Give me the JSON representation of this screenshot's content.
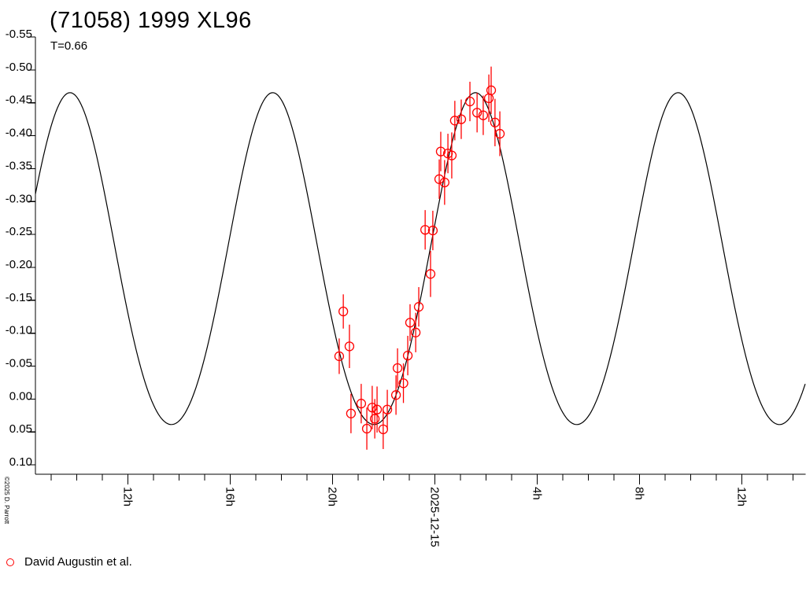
{
  "header": {
    "title": "(71058) 1999 XL96",
    "subtitle": "T=0.66"
  },
  "watermark": "©2025 D. Parrott",
  "legend": {
    "label": "David Augustin et al.",
    "marker_color": "#ff0000"
  },
  "colors": {
    "background": "#ffffff",
    "axis": "#000000",
    "text": "#000000",
    "curve": "#000000",
    "data": "#ff0000"
  },
  "chart_data": {
    "type": "scatter",
    "title": "(71058) 1999 XL96",
    "subtitle": "T=0.66",
    "xlabel": "",
    "ylabel": "",
    "grid": false,
    "legend_position": "bottom-left",
    "y_axis": {
      "inverted_magnitude_scale": true,
      "ylim": [
        -0.55,
        0.1
      ],
      "tick_step": 0.05,
      "ticks": [
        -0.55,
        -0.5,
        -0.45,
        -0.4,
        -0.35,
        -0.3,
        -0.25,
        -0.2,
        -0.15,
        -0.1,
        -0.05,
        0.0,
        0.05,
        0.1
      ]
    },
    "x_axis": {
      "unit": "hours relative to 2025-12-15 00:00",
      "range_hours": [
        -15.6,
        14.5
      ],
      "minor_tick_start": -15,
      "minor_tick_end": 14,
      "minor_tick_step_hours": 1,
      "major_ticks": [
        {
          "hour": -12,
          "label": "12h"
        },
        {
          "hour": -8,
          "label": "16h"
        },
        {
          "hour": -4,
          "label": "20h"
        },
        {
          "hour": 0,
          "label": "2025-12-15"
        },
        {
          "hour": 4,
          "label": "4h"
        },
        {
          "hour": 8,
          "label": "8h"
        },
        {
          "hour": 12,
          "label": "12h"
        }
      ]
    },
    "model_curve": {
      "description": "black periodic model lightcurve, mag(t) = mean - a1*cos(2pi(t-peak_t)/P) - a2*cos(4pi(t-peak_t)/P)",
      "mean_mag": -0.199,
      "a1_mag": 0.2521,
      "a2_mag": 0.0143,
      "peak_t_hours": -14.262,
      "period_hours": 7.923
    },
    "series": [
      {
        "name": "David Augustin et al.",
        "marker": "open-circle",
        "color": "#ff0000",
        "points": [
          {
            "t": -3.74,
            "mag": -0.065,
            "err": 0.027
          },
          {
            "t": -3.58,
            "mag": -0.133,
            "err": 0.026
          },
          {
            "t": -3.34,
            "mag": -0.08,
            "err": 0.033
          },
          {
            "t": -3.28,
            "mag": 0.022,
            "err": 0.03
          },
          {
            "t": -2.88,
            "mag": 0.007,
            "err": 0.03
          },
          {
            "t": -2.66,
            "mag": 0.045,
            "err": 0.032
          },
          {
            "t": -2.45,
            "mag": 0.013,
            "err": 0.033
          },
          {
            "t": -2.35,
            "mag": 0.03,
            "err": 0.03
          },
          {
            "t": -2.26,
            "mag": 0.016,
            "err": 0.035
          },
          {
            "t": -2.02,
            "mag": 0.046,
            "err": 0.03
          },
          {
            "t": -1.86,
            "mag": 0.016,
            "err": 0.03
          },
          {
            "t": -1.52,
            "mag": -0.006,
            "err": 0.03
          },
          {
            "t": -1.46,
            "mag": -0.047,
            "err": 0.03
          },
          {
            "t": -1.23,
            "mag": -0.024,
            "err": 0.03
          },
          {
            "t": -1.06,
            "mag": -0.066,
            "err": 0.03
          },
          {
            "t": -0.97,
            "mag": -0.116,
            "err": 0.028
          },
          {
            "t": -0.75,
            "mag": -0.101,
            "err": 0.03
          },
          {
            "t": -0.63,
            "mag": -0.14,
            "err": 0.03
          },
          {
            "t": -0.38,
            "mag": -0.257,
            "err": 0.03
          },
          {
            "t": -0.17,
            "mag": -0.19,
            "err": 0.035
          },
          {
            "t": -0.08,
            "mag": -0.256,
            "err": 0.03
          },
          {
            "t": 0.17,
            "mag": -0.334,
            "err": 0.03
          },
          {
            "t": 0.23,
            "mag": -0.376,
            "err": 0.03
          },
          {
            "t": 0.38,
            "mag": -0.329,
            "err": 0.034
          },
          {
            "t": 0.51,
            "mag": -0.373,
            "err": 0.03
          },
          {
            "t": 0.66,
            "mag": -0.37,
            "err": 0.035
          },
          {
            "t": 0.78,
            "mag": -0.423,
            "err": 0.03
          },
          {
            "t": 1.03,
            "mag": -0.425,
            "err": 0.03
          },
          {
            "t": 1.37,
            "mag": -0.452,
            "err": 0.03
          },
          {
            "t": 1.65,
            "mag": -0.435,
            "err": 0.03
          },
          {
            "t": 1.89,
            "mag": -0.431,
            "err": 0.03
          },
          {
            "t": 2.11,
            "mag": -0.457,
            "err": 0.036
          },
          {
            "t": 2.2,
            "mag": -0.469,
            "err": 0.036
          },
          {
            "t": 2.35,
            "mag": -0.42,
            "err": 0.036
          },
          {
            "t": 2.54,
            "mag": -0.403,
            "err": 0.034
          }
        ]
      }
    ]
  }
}
